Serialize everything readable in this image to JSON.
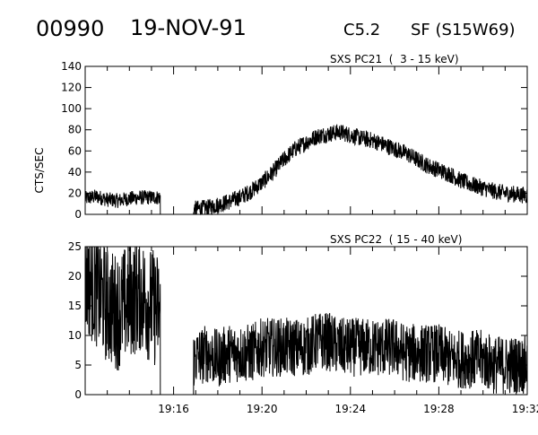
{
  "header": {
    "event_id": "00990",
    "date": "19-NOV-91",
    "goes_class": "C5.2",
    "flare_info": "SF (S15W69)"
  },
  "y_axis_label": "CTS/SEC",
  "chart_data": [
    {
      "type": "line",
      "title": "SXS PC21  (  3 - 15 keV)",
      "ylabel": "CTS/SEC",
      "xlabel": "",
      "xlim": [
        "19:12",
        "19:32"
      ],
      "ylim": [
        0,
        140
      ],
      "yticks": [
        0,
        20,
        40,
        60,
        80,
        100,
        120,
        140
      ],
      "xticks": [
        "19:16",
        "19:20",
        "19:24",
        "19:28",
        "19:32"
      ],
      "data_gaps": [
        [
          "19:15.4",
          "19:16.9"
        ]
      ],
      "series": [
        {
          "name": "",
          "x": [
            "19:12.0",
            "19:12.5",
            "19:13.0",
            "19:13.5",
            "19:14.0",
            "19:14.5",
            "19:15.0",
            "19:15.4",
            "19:16.9",
            "19:17.5",
            "19:18.0",
            "19:18.5",
            "19:19.0",
            "19:19.5",
            "19:20.0",
            "19:20.5",
            "19:21.0",
            "19:21.5",
            "19:22.0",
            "19:22.5",
            "19:23.0",
            "19:23.5",
            "19:24.0",
            "19:24.5",
            "19:25.0",
            "19:25.5",
            "19:26.0",
            "19:26.5",
            "19:27.0",
            "19:27.5",
            "19:28.0",
            "19:28.5",
            "19:29.0",
            "19:29.5",
            "19:30.0",
            "19:30.5",
            "19:31.0",
            "19:31.5",
            "19:32.0"
          ],
          "values": [
            15,
            17,
            14,
            13,
            15,
            16,
            16,
            16,
            5,
            6,
            9,
            12,
            16,
            22,
            30,
            40,
            52,
            62,
            68,
            74,
            76,
            78,
            75,
            72,
            70,
            66,
            62,
            58,
            52,
            46,
            42,
            38,
            32,
            28,
            25,
            22,
            20,
            19,
            18
          ]
        }
      ]
    },
    {
      "type": "line",
      "title": "SXS PC22  ( 15 - 40 keV)",
      "ylabel": "",
      "xlabel": "",
      "xlim": [
        "19:12",
        "19:32"
      ],
      "ylim": [
        0,
        25
      ],
      "yticks": [
        0,
        5,
        10,
        15,
        20,
        25
      ],
      "xticks": [
        "19:16",
        "19:20",
        "19:24",
        "19:28",
        "19:32"
      ],
      "data_gaps": [
        [
          "19:15.4",
          "19:16.9"
        ]
      ],
      "series": [
        {
          "name": "",
          "x": [
            "19:12.0",
            "19:12.5",
            "19:13.0",
            "19:13.5",
            "19:14.0",
            "19:14.5",
            "19:15.0",
            "19:15.4",
            "19:16.9",
            "19:17.5",
            "19:18.0",
            "19:18.5",
            "19:19.0",
            "19:19.5",
            "19:20.0",
            "19:20.5",
            "19:21.0",
            "19:21.5",
            "19:22.0",
            "19:22.5",
            "19:23.0",
            "19:23.5",
            "19:24.0",
            "19:24.5",
            "19:25.0",
            "19:25.5",
            "19:26.0",
            "19:26.5",
            "19:27.0",
            "19:27.5",
            "19:28.0",
            "19:28.5",
            "19:29.0",
            "19:29.5",
            "19:30.0",
            "19:30.5",
            "19:31.0",
            "19:31.5",
            "19:32.0"
          ],
          "values": [
            20,
            18,
            15,
            14,
            16,
            17,
            15,
            14,
            6,
            7,
            6,
            7,
            7,
            7,
            8,
            8,
            8,
            8,
            8,
            9,
            9,
            8,
            8,
            8,
            8,
            8,
            8,
            7,
            7,
            7,
            7,
            6,
            6,
            6,
            6,
            5,
            5,
            5,
            5
          ]
        }
      ]
    }
  ]
}
